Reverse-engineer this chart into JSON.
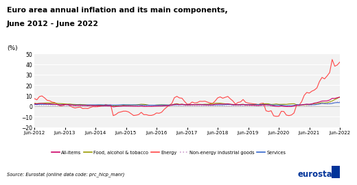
{
  "title1": "Euro area annual inflation and its main components,",
  "title2": "June 2012 - June 2022",
  "ylabel": "(%)",
  "source": "Source: Eurostat (online data code: prc_hicp_manr)",
  "ylim": [
    -20,
    50
  ],
  "yticks": [
    -20,
    -10,
    0,
    10,
    20,
    30,
    40,
    50
  ],
  "colors": {
    "all_items": "#CC0066",
    "food": "#999900",
    "energy": "#FF4444",
    "neig": "#CC99CC",
    "services": "#3366CC"
  },
  "all_items": [
    2.4,
    2.2,
    2.6,
    2.7,
    2.5,
    2.2,
    2.2,
    2.0,
    1.8,
    1.7,
    1.2,
    1.4,
    1.6,
    1.6,
    1.3,
    1.1,
    0.7,
    0.9,
    0.8,
    0.7,
    0.7,
    0.5,
    0.7,
    0.5,
    0.5,
    0.4,
    0.4,
    0.3,
    0.4,
    0.3,
    0.3,
    -0.6,
    -0.3,
    -0.1,
    0.0,
    0.3,
    0.2,
    0.2,
    0.1,
    0.0,
    0.0,
    -0.1,
    0.2,
    -0.2,
    -0.2,
    -0.1,
    -0.2,
    0.0,
    0.1,
    0.2,
    0.2,
    0.4,
    0.5,
    0.6,
    1.1,
    1.8,
    2.0,
    1.5,
    1.9,
    1.4,
    1.3,
    1.3,
    1.5,
    1.5,
    1.4,
    1.5,
    1.4,
    1.4,
    1.2,
    1.4,
    1.3,
    1.9,
    2.0,
    2.1,
    2.0,
    2.1,
    2.2,
    1.9,
    1.5,
    1.4,
    1.5,
    1.4,
    1.7,
    1.2,
    1.3,
    1.0,
    1.0,
    0.8,
    0.7,
    1.0,
    1.3,
    1.4,
    1.2,
    0.7,
    0.3,
    -0.1,
    -0.3,
    0.4,
    -0.2,
    -0.3,
    -0.3,
    -0.3,
    0.3,
    0.9,
    0.9,
    1.3,
    1.6,
    2.0,
    1.9,
    2.2,
    3.0,
    3.4,
    4.1,
    4.9,
    5.0,
    5.1,
    5.9,
    7.5,
    7.4,
    8.1,
    8.6
  ],
  "food": [
    2.8,
    2.5,
    2.7,
    2.9,
    3.0,
    3.2,
    3.1,
    3.1,
    2.9,
    2.6,
    2.5,
    2.4,
    2.2,
    2.0,
    2.1,
    1.8,
    1.7,
    1.5,
    1.7,
    1.5,
    1.4,
    1.0,
    0.9,
    0.9,
    0.7,
    0.9,
    1.0,
    1.0,
    0.8,
    0.7,
    0.5,
    0.4,
    0.3,
    0.5,
    0.8,
    1.0,
    1.2,
    1.2,
    1.0,
    1.1,
    1.3,
    1.6,
    1.9,
    1.8,
    1.5,
    1.0,
    0.9,
    0.9,
    1.2,
    1.3,
    1.4,
    1.3,
    1.1,
    1.1,
    1.2,
    2.0,
    2.4,
    1.8,
    1.9,
    1.6,
    1.4,
    1.4,
    1.5,
    1.5,
    1.9,
    1.8,
    1.7,
    1.9,
    1.9,
    2.2,
    2.5,
    2.8,
    2.9,
    2.9,
    2.6,
    2.3,
    2.3,
    1.8,
    1.7,
    1.5,
    1.4,
    1.7,
    1.9,
    1.2,
    1.5,
    1.5,
    1.5,
    1.7,
    1.7,
    1.7,
    2.2,
    2.4,
    2.3,
    1.7,
    1.8,
    2.2,
    1.8,
    1.8,
    1.9,
    1.8,
    2.2,
    2.3,
    2.4,
    1.5,
    0.8,
    1.0,
    1.4,
    1.4,
    1.5,
    2.0,
    2.4,
    2.6,
    2.9,
    3.3,
    3.2,
    3.4,
    4.1,
    5.0,
    6.3,
    7.5,
    8.9
  ],
  "energy": [
    7.3,
    6.1,
    9.2,
    9.8,
    8.0,
    5.7,
    5.2,
    3.9,
    3.5,
    2.0,
    0.3,
    0.3,
    1.6,
    1.7,
    0.3,
    -0.9,
    -1.7,
    -1.1,
    -0.8,
    -2.2,
    -2.0,
    -2.2,
    -1.2,
    -0.4,
    -0.5,
    -0.4,
    0.0,
    0.5,
    1.7,
    1.1,
    1.3,
    -8.9,
    -7.9,
    -6.0,
    -5.4,
    -4.7,
    -4.7,
    -5.4,
    -7.1,
    -8.8,
    -8.5,
    -7.9,
    -5.8,
    -8.0,
    -8.0,
    -8.7,
    -8.7,
    -8.0,
    -6.4,
    -6.7,
    -5.7,
    -3.0,
    -0.9,
    1.1,
    2.6,
    8.1,
    9.4,
    7.9,
    7.6,
    4.6,
    2.0,
    2.1,
    4.0,
    3.0,
    3.5,
    4.7,
    4.6,
    4.8,
    3.9,
    3.1,
    2.6,
    4.9,
    7.9,
    8.9,
    7.6,
    8.5,
    9.3,
    7.0,
    5.0,
    1.9,
    3.6,
    4.1,
    6.4,
    3.7,
    3.0,
    2.6,
    2.3,
    2.1,
    1.5,
    2.6,
    2.9,
    -4.3,
    -5.0,
    -4.3,
    -9.1,
    -9.6,
    -9.4,
    -4.8,
    -5.0,
    -8.4,
    -8.9,
    -8.3,
    -6.4,
    0.9,
    1.0,
    4.3,
    10.3,
    13.1,
    12.5,
    14.3,
    15.4,
    17.4,
    23.5,
    27.4,
    26.0,
    28.8,
    32.0,
    44.4,
    38.0,
    39.2,
    42.0
  ],
  "neig": [
    1.2,
    1.0,
    0.7,
    1.0,
    1.0,
    0.8,
    0.6,
    0.6,
    0.5,
    0.5,
    0.5,
    0.4,
    0.4,
    0.4,
    0.4,
    0.3,
    0.3,
    0.2,
    0.3,
    0.2,
    0.0,
    0.0,
    0.0,
    0.1,
    0.1,
    0.1,
    0.1,
    0.0,
    0.0,
    0.0,
    0.0,
    0.1,
    0.0,
    0.0,
    0.0,
    0.0,
    0.2,
    0.2,
    0.1,
    0.1,
    0.0,
    0.0,
    0.2,
    0.3,
    0.3,
    0.3,
    0.3,
    0.4,
    0.3,
    0.4,
    0.4,
    0.4,
    0.4,
    0.4,
    0.5,
    0.7,
    0.7,
    0.4,
    0.6,
    0.4,
    0.4,
    0.4,
    0.5,
    0.3,
    0.4,
    0.5,
    0.4,
    0.4,
    0.4,
    0.3,
    0.3,
    0.3,
    0.3,
    0.3,
    0.3,
    0.3,
    0.3,
    0.2,
    0.2,
    0.3,
    0.3,
    0.2,
    0.3,
    0.3,
    0.4,
    0.4,
    0.3,
    0.3,
    0.3,
    0.3,
    0.4,
    0.4,
    0.2,
    0.1,
    0.1,
    -0.1,
    -0.3,
    -0.1,
    0.1,
    0.2,
    0.3,
    0.2,
    0.3,
    0.9,
    1.0,
    1.1,
    0.7,
    0.5,
    0.6,
    0.6,
    2.7,
    2.0,
    2.0,
    2.3,
    2.9,
    2.3,
    3.0,
    3.4,
    3.8,
    4.2,
    4.3
  ],
  "services": [
    1.6,
    1.7,
    1.8,
    1.8,
    1.8,
    1.9,
    1.8,
    1.6,
    1.6,
    1.7,
    1.3,
    1.5,
    1.6,
    1.5,
    1.2,
    1.2,
    1.2,
    1.3,
    1.2,
    1.2,
    1.1,
    1.3,
    1.3,
    1.3,
    1.3,
    1.4,
    1.4,
    1.3,
    1.2,
    1.2,
    1.2,
    1.1,
    1.1,
    1.2,
    1.3,
    1.5,
    1.3,
    1.3,
    1.3,
    1.3,
    1.2,
    1.2,
    1.2,
    0.9,
    1.0,
    1.0,
    1.0,
    1.0,
    1.0,
    1.1,
    1.2,
    1.2,
    1.2,
    1.1,
    1.2,
    1.2,
    1.4,
    1.4,
    1.5,
    1.4,
    1.4,
    1.5,
    1.5,
    1.5,
    1.5,
    1.5,
    1.5,
    1.3,
    1.3,
    1.0,
    1.1,
    1.3,
    1.3,
    1.3,
    1.3,
    1.5,
    1.6,
    1.6,
    1.2,
    1.4,
    1.5,
    1.3,
    1.5,
    1.4,
    1.5,
    1.4,
    1.3,
    1.5,
    1.5,
    1.5,
    1.7,
    1.5,
    1.4,
    1.4,
    1.1,
    1.1,
    1.0,
    1.1,
    0.9,
    0.5,
    0.7,
    0.6,
    0.8,
    1.4,
    1.4,
    1.3,
    1.7,
    1.7,
    1.4,
    1.4,
    1.4,
    1.7,
    2.1,
    2.7,
    2.4,
    2.3,
    2.4,
    2.7,
    3.3,
    3.5,
    3.4
  ],
  "legend_labels": [
    "All-items",
    "Food, alcohol & tobacco",
    "Energy",
    "Non-energy industrial goods",
    "Services"
  ],
  "xtick_labels": [
    "Jun-2012",
    "Jun-2013",
    "Jun-2014",
    "Jun-2015",
    "Jun-2016",
    "Jun-2017",
    "Jun-2018",
    "Jun-2019",
    "Jun-2020",
    "Jun-2021",
    "Jun-2022"
  ],
  "plot_bg": "#F2F2F2",
  "grid_color": "#FFFFFF"
}
